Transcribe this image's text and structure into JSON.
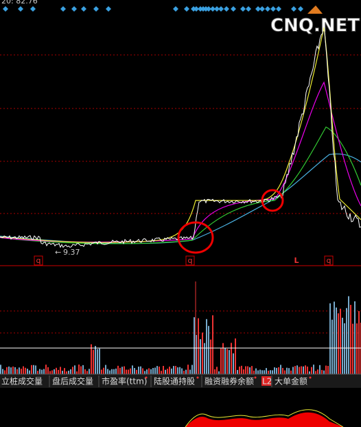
{
  "header": {
    "indicator": "20: 82.76",
    "watermark": "CNQ.NET"
  },
  "price_panel": {
    "low_label": "9.37",
    "markers": [
      "q",
      "q",
      "L",
      "q"
    ]
  },
  "tabs": [
    "立桩成交量",
    "盘后成交量",
    "市盈率(ttm)",
    "陆股通持股",
    "融资融券余额",
    "L2",
    "大单金额"
  ]
}
